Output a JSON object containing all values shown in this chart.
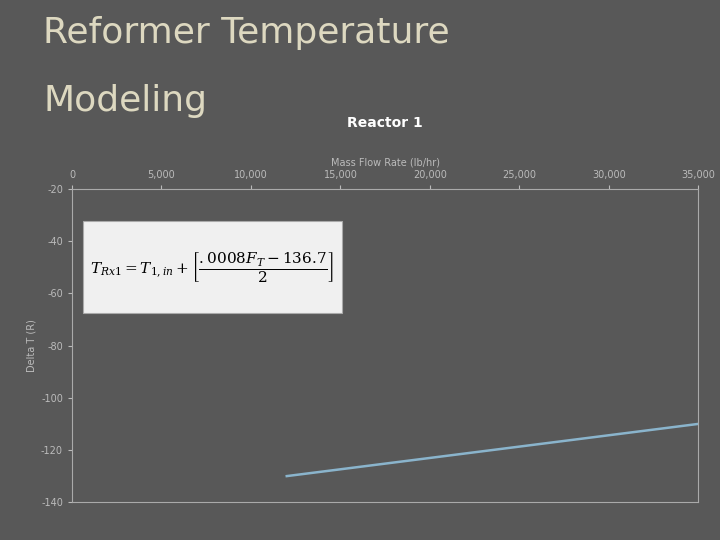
{
  "title_line1": "Reformer Temperature",
  "title_line2": "Modeling",
  "chart_title": "Reactor 1",
  "xlabel": "Mass Flow Rate (lb/hr)",
  "ylabel": "Delta T (R)",
  "bg_color": "#585858",
  "title_color": "#ddd8c0",
  "header_bar_color": "#9ab8cc",
  "orange_bar_color": "#c8622a",
  "line_color": "#8ab4cc",
  "x_start": 12000,
  "x_end": 35000,
  "y_at_x_start": -130,
  "y_at_x_end": -110,
  "ylim": [
    -140,
    -20
  ],
  "xlim": [
    0,
    35000
  ],
  "xticks": [
    0,
    5000,
    10000,
    15000,
    20000,
    25000,
    30000,
    35000
  ],
  "yticks": [
    -140,
    -120,
    -100,
    -80,
    -60,
    -40,
    -20
  ],
  "tick_label_color": "#bbbbbb",
  "axis_color": "#aaaaaa",
  "formula_box_color": "#f0f0f0",
  "formula_text_color": "#000000",
  "title_fontsize": 26,
  "chart_title_fontsize": 10,
  "xlabel_fontsize": 7,
  "ylabel_fontsize": 7,
  "tick_fontsize": 7,
  "formula_fontsize": 11
}
